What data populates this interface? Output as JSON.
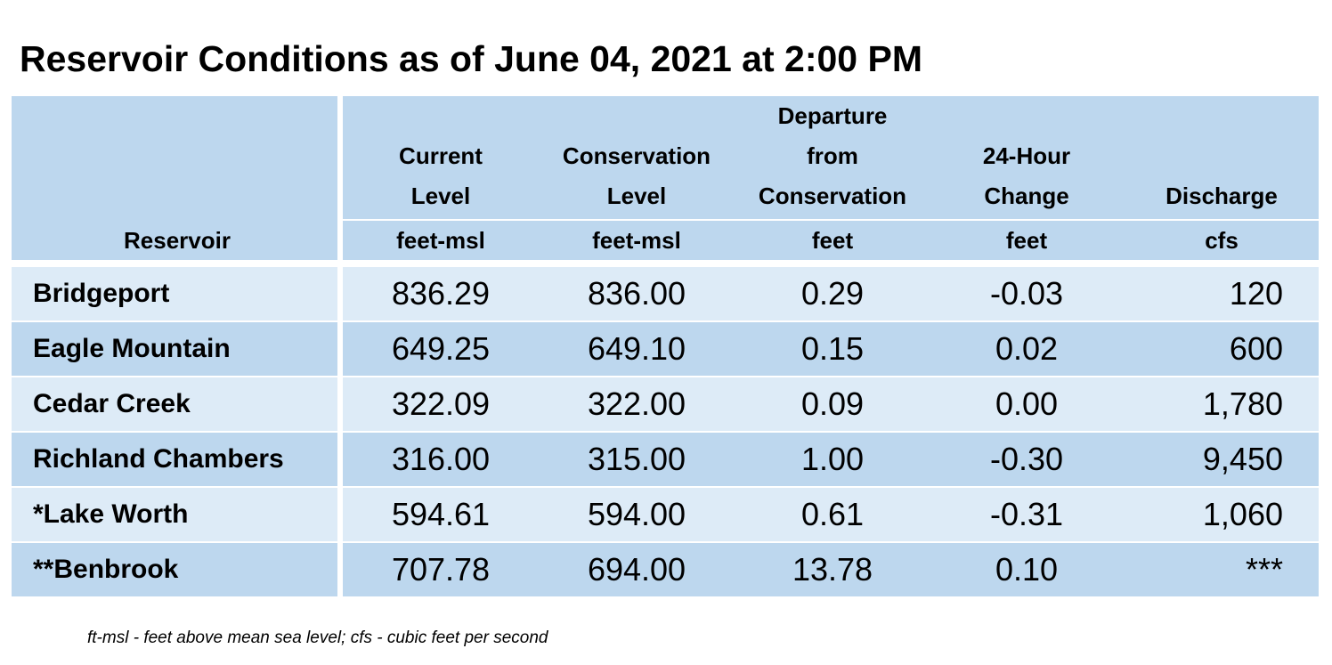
{
  "title": "Reservoir Conditions as of June 04, 2021 at 2:00 PM",
  "columns": [
    {
      "lines": [
        "",
        "",
        ""
      ],
      "unit": "Reservoir"
    },
    {
      "lines": [
        "",
        "Current",
        "Level"
      ],
      "unit": "feet-msl"
    },
    {
      "lines": [
        "",
        "Conservation",
        "Level"
      ],
      "unit": "feet-msl"
    },
    {
      "lines": [
        "Departure",
        "from",
        "Conservation"
      ],
      "unit": "feet"
    },
    {
      "lines": [
        "",
        "24-Hour",
        "Change"
      ],
      "unit": "feet"
    },
    {
      "lines": [
        "",
        "",
        "Discharge"
      ],
      "unit": "cfs"
    }
  ],
  "rows": [
    {
      "name": "Bridgeport",
      "current": "836.29",
      "conservation": "836.00",
      "departure": "0.29",
      "change": "-0.03",
      "discharge": "120"
    },
    {
      "name": "Eagle Mountain",
      "current": "649.25",
      "conservation": "649.10",
      "departure": "0.15",
      "change": "0.02",
      "discharge": "600"
    },
    {
      "name": "Cedar Creek",
      "current": "322.09",
      "conservation": "322.00",
      "departure": "0.09",
      "change": "0.00",
      "discharge": "1,780"
    },
    {
      "name": "Richland Chambers",
      "current": "316.00",
      "conservation": "315.00",
      "departure": "1.00",
      "change": "-0.30",
      "discharge": "9,450"
    },
    {
      "name": "*Lake Worth",
      "current": "594.61",
      "conservation": "594.00",
      "departure": "0.61",
      "change": "-0.31",
      "discharge": "1,060"
    },
    {
      "name": "**Benbrook",
      "current": "707.78",
      "conservation": "694.00",
      "departure": "13.78",
      "change": "0.10",
      "discharge": "***"
    }
  ],
  "footnote": "ft-msl - feet above mean sea level; cfs - cubic feet per second",
  "colors": {
    "header_bg": "#bdd7ee",
    "row_light": "#ddebf7",
    "row_dark": "#bdd7ee"
  }
}
